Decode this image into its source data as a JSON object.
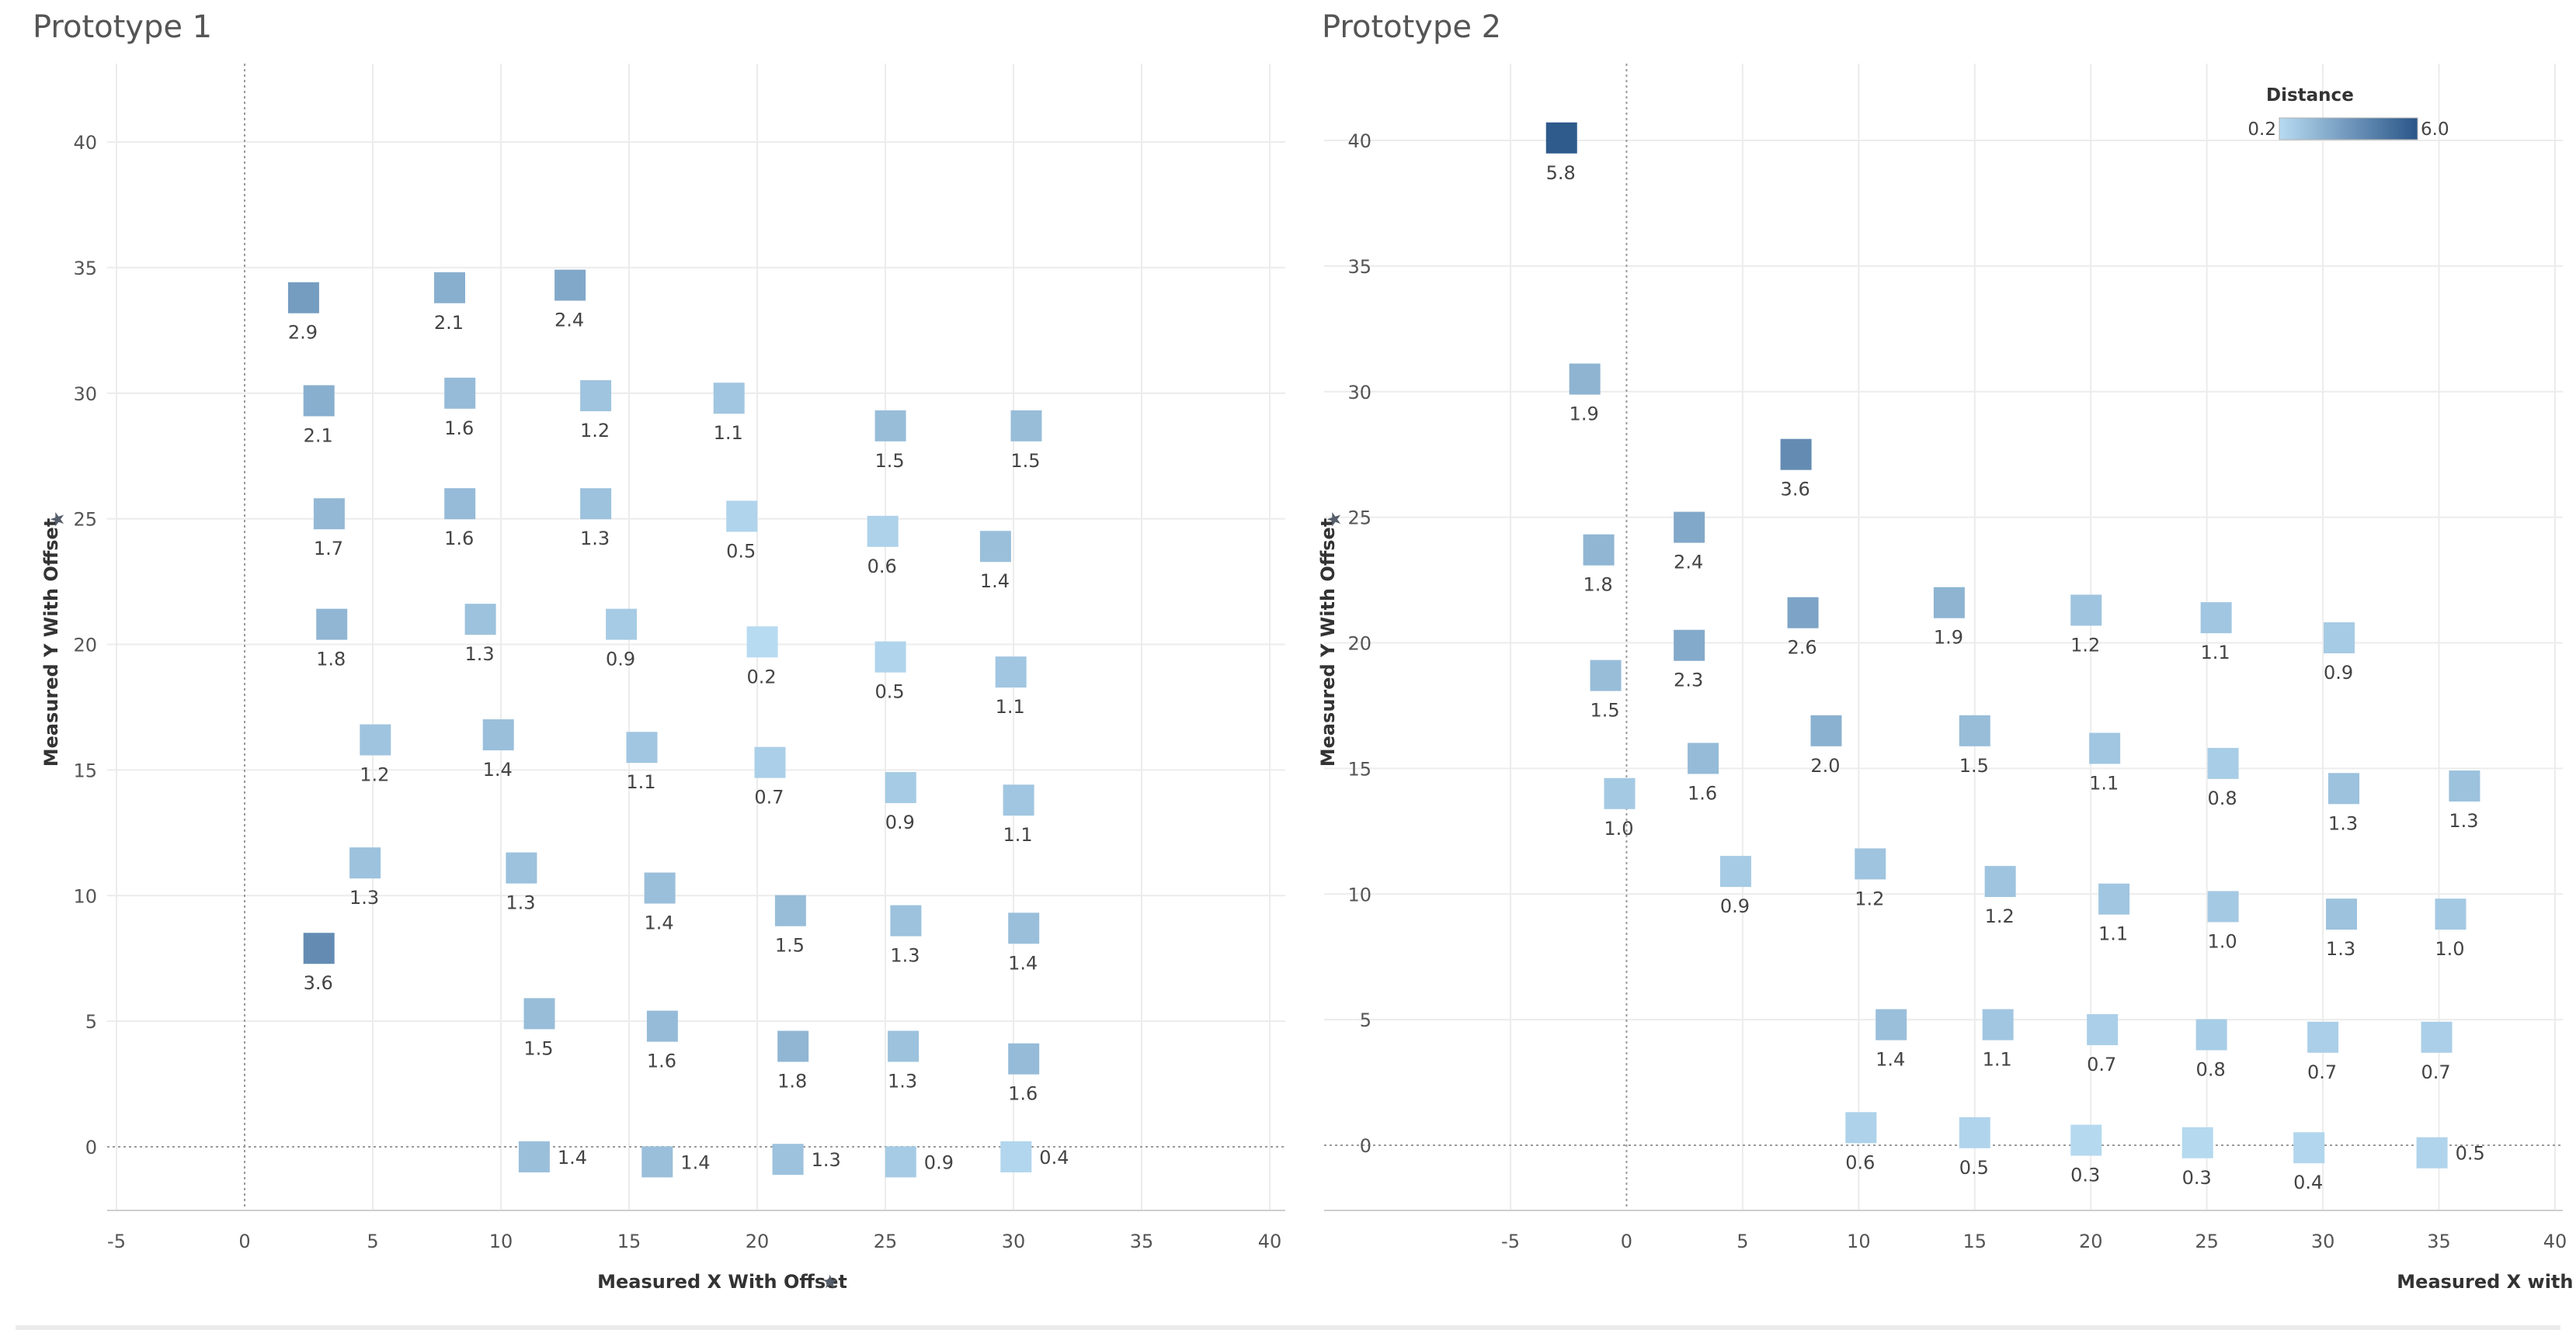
{
  "chart_data": [
    {
      "type": "scatter",
      "title": "Prototype 1",
      "xlabel": "Measured X With Offset",
      "ylabel": "Measured Y With Offset",
      "xlim": [
        -5,
        40
      ],
      "ylim": [
        -3,
        43
      ],
      "xticks": [
        "-5",
        "0",
        "5",
        "10",
        "15",
        "20",
        "25",
        "30",
        "35",
        "40"
      ],
      "yticks": [
        "0",
        "5",
        "10",
        "15",
        "20",
        "25",
        "30",
        "35",
        "40"
      ],
      "color_field": "Distance",
      "color_range": [
        0.2,
        6.0
      ],
      "points": [
        {
          "x": 2.3,
          "y": 33.8,
          "label": "2.9",
          "pos": "below"
        },
        {
          "x": 8.0,
          "y": 34.2,
          "label": "2.1",
          "pos": "below"
        },
        {
          "x": 12.7,
          "y": 34.3,
          "label": "2.4",
          "pos": "below"
        },
        {
          "x": 2.9,
          "y": 29.7,
          "label": "2.1",
          "pos": "below"
        },
        {
          "x": 8.4,
          "y": 30.0,
          "label": "1.6",
          "pos": "below"
        },
        {
          "x": 13.7,
          "y": 29.9,
          "label": "1.2",
          "pos": "below"
        },
        {
          "x": 18.9,
          "y": 29.8,
          "label": "1.1",
          "pos": "below"
        },
        {
          "x": 25.2,
          "y": 28.7,
          "label": "1.5",
          "pos": "below"
        },
        {
          "x": 30.5,
          "y": 28.7,
          "label": "1.5",
          "pos": "below"
        },
        {
          "x": 3.3,
          "y": 25.2,
          "label": "1.7",
          "pos": "below"
        },
        {
          "x": 8.4,
          "y": 25.6,
          "label": "1.6",
          "pos": "below"
        },
        {
          "x": 13.7,
          "y": 25.6,
          "label": "1.3",
          "pos": "below"
        },
        {
          "x": 19.4,
          "y": 25.1,
          "label": "0.5",
          "pos": "below"
        },
        {
          "x": 24.9,
          "y": 24.5,
          "label": "0.6",
          "pos": "below"
        },
        {
          "x": 29.3,
          "y": 23.9,
          "label": "1.4",
          "pos": "below"
        },
        {
          "x": 3.4,
          "y": 20.8,
          "label": "1.8",
          "pos": "below"
        },
        {
          "x": 9.2,
          "y": 21.0,
          "label": "1.3",
          "pos": "below"
        },
        {
          "x": 14.7,
          "y": 20.8,
          "label": "0.9",
          "pos": "below"
        },
        {
          "x": 20.2,
          "y": 20.1,
          "label": "0.2",
          "pos": "below"
        },
        {
          "x": 25.2,
          "y": 19.5,
          "label": "0.5",
          "pos": "below"
        },
        {
          "x": 29.9,
          "y": 18.9,
          "label": "1.1",
          "pos": "below"
        },
        {
          "x": 5.1,
          "y": 16.2,
          "label": "1.2",
          "pos": "below"
        },
        {
          "x": 9.9,
          "y": 16.4,
          "label": "1.4",
          "pos": "below"
        },
        {
          "x": 15.5,
          "y": 15.9,
          "label": "1.1",
          "pos": "below"
        },
        {
          "x": 20.5,
          "y": 15.3,
          "label": "0.7",
          "pos": "below"
        },
        {
          "x": 25.6,
          "y": 14.3,
          "label": "0.9",
          "pos": "below"
        },
        {
          "x": 30.2,
          "y": 13.8,
          "label": "1.1",
          "pos": "below"
        },
        {
          "x": 4.7,
          "y": 11.3,
          "label": "1.3",
          "pos": "below"
        },
        {
          "x": 10.8,
          "y": 11.1,
          "label": "1.3",
          "pos": "below"
        },
        {
          "x": 16.2,
          "y": 10.3,
          "label": "1.4",
          "pos": "below"
        },
        {
          "x": 21.3,
          "y": 9.4,
          "label": "1.5",
          "pos": "below"
        },
        {
          "x": 25.8,
          "y": 9.0,
          "label": "1.3",
          "pos": "below"
        },
        {
          "x": 30.4,
          "y": 8.7,
          "label": "1.4",
          "pos": "below"
        },
        {
          "x": 2.9,
          "y": 7.9,
          "label": "3.6",
          "pos": "below"
        },
        {
          "x": 11.5,
          "y": 5.3,
          "label": "1.5",
          "pos": "below"
        },
        {
          "x": 16.3,
          "y": 4.8,
          "label": "1.6",
          "pos": "below"
        },
        {
          "x": 21.4,
          "y": 4.0,
          "label": "1.8",
          "pos": "below"
        },
        {
          "x": 25.7,
          "y": 4.0,
          "label": "1.3",
          "pos": "below"
        },
        {
          "x": 30.4,
          "y": 3.5,
          "label": "1.6",
          "pos": "below"
        },
        {
          "x": 11.3,
          "y": -0.4,
          "label": "1.4",
          "pos": "right"
        },
        {
          "x": 16.1,
          "y": -0.6,
          "label": "1.4",
          "pos": "right"
        },
        {
          "x": 21.2,
          "y": -0.5,
          "label": "1.3",
          "pos": "right"
        },
        {
          "x": 25.6,
          "y": -0.6,
          "label": "0.9",
          "pos": "right"
        },
        {
          "x": 30.1,
          "y": -0.4,
          "label": "0.4",
          "pos": "right"
        }
      ]
    },
    {
      "type": "scatter",
      "title": "Prototype 2",
      "xlabel": "Measured X with Offset",
      "ylabel": "Measured Y With Offset",
      "xlim": [
        -5,
        40
      ],
      "ylim": [
        -3,
        43
      ],
      "xticks": [
        "-5",
        "0",
        "5",
        "10",
        "15",
        "20",
        "25",
        "30",
        "35",
        "40"
      ],
      "yticks": [
        "0",
        "5",
        "10",
        "15",
        "20",
        "25",
        "30",
        "35",
        "40"
      ],
      "color_field": "Distance",
      "color_range": [
        0.2,
        6.0
      ],
      "legend": {
        "title": "Distance",
        "min_label": "0.2",
        "max_label": "6.0",
        "placement": "top-right"
      },
      "points": [
        {
          "x": -2.8,
          "y": 40.1,
          "label": "5.8",
          "pos": "below"
        },
        {
          "x": -1.8,
          "y": 30.5,
          "label": "1.9",
          "pos": "below"
        },
        {
          "x": 7.3,
          "y": 27.5,
          "label": "3.6",
          "pos": "below"
        },
        {
          "x": -1.2,
          "y": 23.7,
          "label": "1.8",
          "pos": "below"
        },
        {
          "x": 2.7,
          "y": 24.6,
          "label": "2.4",
          "pos": "below"
        },
        {
          "x": 13.9,
          "y": 21.6,
          "label": "1.9",
          "pos": "below"
        },
        {
          "x": 7.6,
          "y": 21.2,
          "label": "2.6",
          "pos": "below"
        },
        {
          "x": 19.8,
          "y": 21.3,
          "label": "1.2",
          "pos": "below"
        },
        {
          "x": 25.4,
          "y": 21.0,
          "label": "1.1",
          "pos": "below"
        },
        {
          "x": 30.7,
          "y": 20.2,
          "label": "0.9",
          "pos": "below"
        },
        {
          "x": -0.9,
          "y": 18.7,
          "label": "1.5",
          "pos": "below"
        },
        {
          "x": 2.7,
          "y": 19.9,
          "label": "2.3",
          "pos": "below"
        },
        {
          "x": 8.6,
          "y": 16.5,
          "label": "2.0",
          "pos": "below"
        },
        {
          "x": 15.0,
          "y": 16.5,
          "label": "1.5",
          "pos": "below"
        },
        {
          "x": 20.6,
          "y": 15.8,
          "label": "1.1",
          "pos": "below"
        },
        {
          "x": 25.7,
          "y": 15.2,
          "label": "0.8",
          "pos": "below"
        },
        {
          "x": 30.9,
          "y": 14.2,
          "label": "1.3",
          "pos": "below"
        },
        {
          "x": 36.1,
          "y": 14.3,
          "label": "1.3",
          "pos": "below"
        },
        {
          "x": 3.3,
          "y": 15.4,
          "label": "1.6",
          "pos": "below"
        },
        {
          "x": -0.3,
          "y": 14.0,
          "label": "1.0",
          "pos": "below"
        },
        {
          "x": 4.7,
          "y": 10.9,
          "label": "0.9",
          "pos": "below"
        },
        {
          "x": 10.5,
          "y": 11.2,
          "label": "1.2",
          "pos": "below"
        },
        {
          "x": 16.1,
          "y": 10.5,
          "label": "1.2",
          "pos": "below"
        },
        {
          "x": 21.0,
          "y": 9.8,
          "label": "1.1",
          "pos": "below"
        },
        {
          "x": 25.7,
          "y": 9.5,
          "label": "1.0",
          "pos": "below"
        },
        {
          "x": 30.8,
          "y": 9.2,
          "label": "1.3",
          "pos": "below"
        },
        {
          "x": 35.5,
          "y": 9.2,
          "label": "1.0",
          "pos": "below"
        },
        {
          "x": 11.4,
          "y": 4.8,
          "label": "1.4",
          "pos": "below"
        },
        {
          "x": 16.0,
          "y": 4.8,
          "label": "1.1",
          "pos": "below"
        },
        {
          "x": 20.5,
          "y": 4.6,
          "label": "0.7",
          "pos": "below"
        },
        {
          "x": 25.2,
          "y": 4.4,
          "label": "0.8",
          "pos": "below"
        },
        {
          "x": 30.0,
          "y": 4.3,
          "label": "0.7",
          "pos": "below"
        },
        {
          "x": 34.9,
          "y": 4.3,
          "label": "0.7",
          "pos": "below"
        },
        {
          "x": 10.1,
          "y": 0.7,
          "label": "0.6",
          "pos": "below"
        },
        {
          "x": 15.0,
          "y": 0.5,
          "label": "0.5",
          "pos": "below"
        },
        {
          "x": 19.8,
          "y": 0.2,
          "label": "0.3",
          "pos": "below"
        },
        {
          "x": 24.6,
          "y": 0.1,
          "label": "0.3",
          "pos": "below"
        },
        {
          "x": 29.4,
          "y": -0.1,
          "label": "0.4",
          "pos": "below"
        },
        {
          "x": 34.7,
          "y": -0.3,
          "label": "0.5",
          "pos": "right"
        }
      ]
    }
  ]
}
